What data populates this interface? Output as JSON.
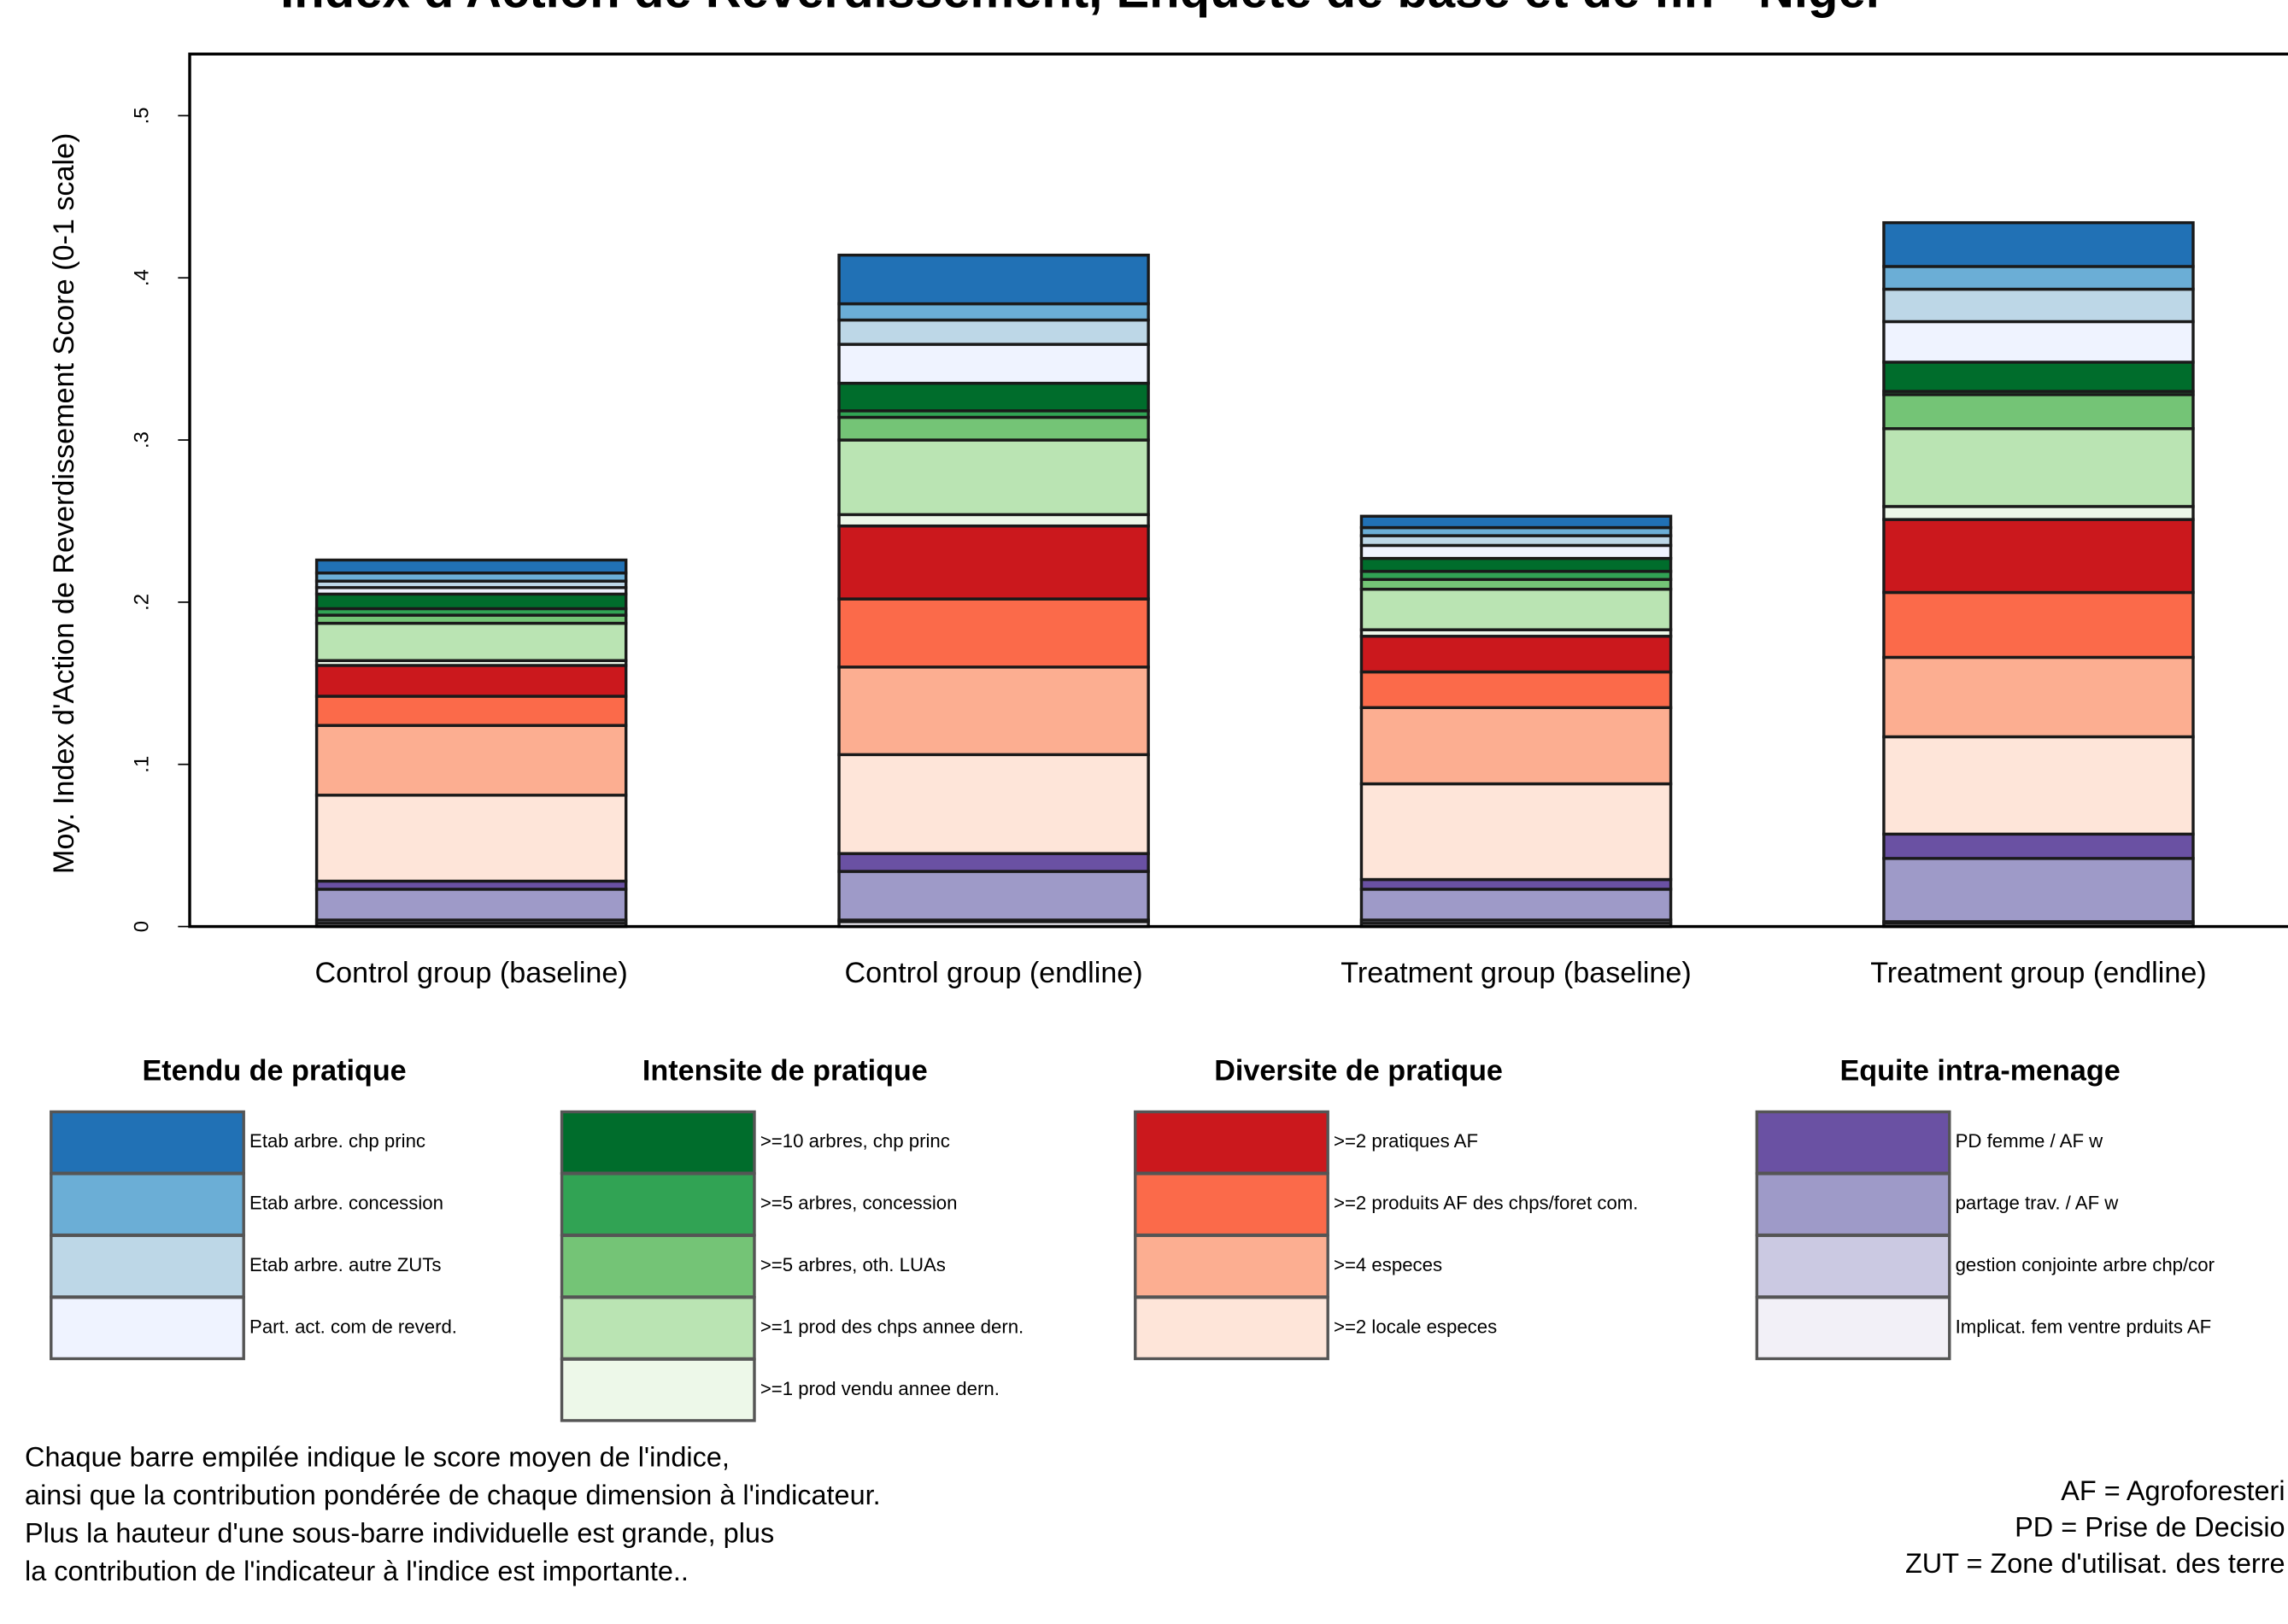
{
  "chart_data": {
    "type": "stacked_bar",
    "title": "Index d'Action de Reverdissement, Enquete de base et de fin - Niger",
    "y_label": "Moy. Index d'Action de Reverdissement Score (0-1 scale)",
    "categories": [
      "Control group (baseline)",
      "Control group (endline)",
      "Treatment group (baseline)",
      "Treatment group (endline)"
    ],
    "ylim": [
      0,
      0.538
    ],
    "yticks": [
      0,
      {
        "value": 0.1,
        "label": ".1"
      },
      {
        "value": 0.2,
        "label": ".2"
      },
      {
        "value": 0.3,
        "label": ".3"
      },
      {
        "value": 0.4,
        "label": ".4"
      },
      {
        "value": 0.5,
        "label": ".5"
      }
    ],
    "groups": [
      {
        "title": "Etendu de pratique",
        "series": [
          {
            "name": "Etab arbre. chp princ",
            "color": "#2171b5",
            "values": [
              0.008,
              0.03,
              0.007,
              0.027
            ]
          },
          {
            "name": "Etab arbre. concession",
            "color": "#6baed6",
            "values": [
              0.005,
              0.01,
              0.005,
              0.014
            ]
          },
          {
            "name": "Etab arbre. autre ZUTs",
            "color": "#bdd7e7",
            "values": [
              0.004,
              0.015,
              0.006,
              0.02
            ]
          },
          {
            "name": "Part. act. com de reverd.",
            "color": "#eff3ff",
            "values": [
              0.004,
              0.024,
              0.008,
              0.025
            ]
          }
        ]
      },
      {
        "title": "Intensite de pratique",
        "series": [
          {
            "name": ">=10 arbres, chp princ",
            "color": "#006d2c",
            "values": [
              0.009,
              0.017,
              0.008,
              0.018
            ]
          },
          {
            "name": ">=5 arbres, concession",
            "color": "#31a354",
            "values": [
              0.004,
              0.004,
              0.005,
              0.002
            ]
          },
          {
            "name": ">=5 arbres, oth. LUAs",
            "color": "#74c476",
            "values": [
              0.005,
              0.014,
              0.006,
              0.021
            ]
          },
          {
            "name": ">=1 prod des chps annee dern.",
            "color": "#bae4b3",
            "values": [
              0.023,
              0.046,
              0.025,
              0.048
            ]
          },
          {
            "name": ">=1 prod vendu annee dern.",
            "color": "#edf8e9",
            "values": [
              0.003,
              0.007,
              0.004,
              0.008
            ]
          }
        ]
      },
      {
        "title": "Diversite de pratique",
        "series": [
          {
            "name": ">=2 pratiques AF",
            "color": "#cb181d",
            "values": [
              0.019,
              0.045,
              0.022,
              0.045
            ]
          },
          {
            "name": ">=2 produits AF des chps/foret com.",
            "color": "#fb6a4a",
            "values": [
              0.018,
              0.042,
              0.022,
              0.04
            ]
          },
          {
            "name": ">=4 especes",
            "color": "#fcae91",
            "values": [
              0.043,
              0.054,
              0.047,
              0.049
            ]
          },
          {
            "name": ">=2 locale especes",
            "color": "#fee5d9",
            "values": [
              0.053,
              0.061,
              0.059,
              0.06
            ]
          }
        ]
      },
      {
        "title": "Equite intra-menage",
        "series": [
          {
            "name": "PD femme / AF w",
            "color": "#6a51a3",
            "values": [
              0.005,
              0.011,
              0.006,
              0.015
            ]
          },
          {
            "name": "partage trav. / AF w",
            "color": "#9e9ac8",
            "values": [
              0.019,
              0.03,
              0.019,
              0.039
            ]
          },
          {
            "name": "gestion conjointe arbre chp/cor",
            "color": "#cbc9e2",
            "values": [
              0.002,
              0.001,
              0.002,
              0.001
            ]
          },
          {
            "name": "Implicat. fem ventre prduits AF",
            "color": "#f2f0f7",
            "values": [
              0.002,
              0.003,
              0.002,
              0.002
            ]
          }
        ]
      }
    ],
    "notes_left": [
      "Chaque barre empilée indique le score moyen de l'indice,",
      "ainsi que la contribution pondérée de chaque dimension à l'indicateur.",
      "Plus la hauteur d'une sous-barre individuelle est grande, plus",
      "la contribution de l'indicateur à l'indice est importante.."
    ],
    "notes_right": [
      "AF = Agroforesteri",
      "PD = Prise de Decisio",
      "ZUT = Zone d'utilisat. des terre"
    ]
  }
}
